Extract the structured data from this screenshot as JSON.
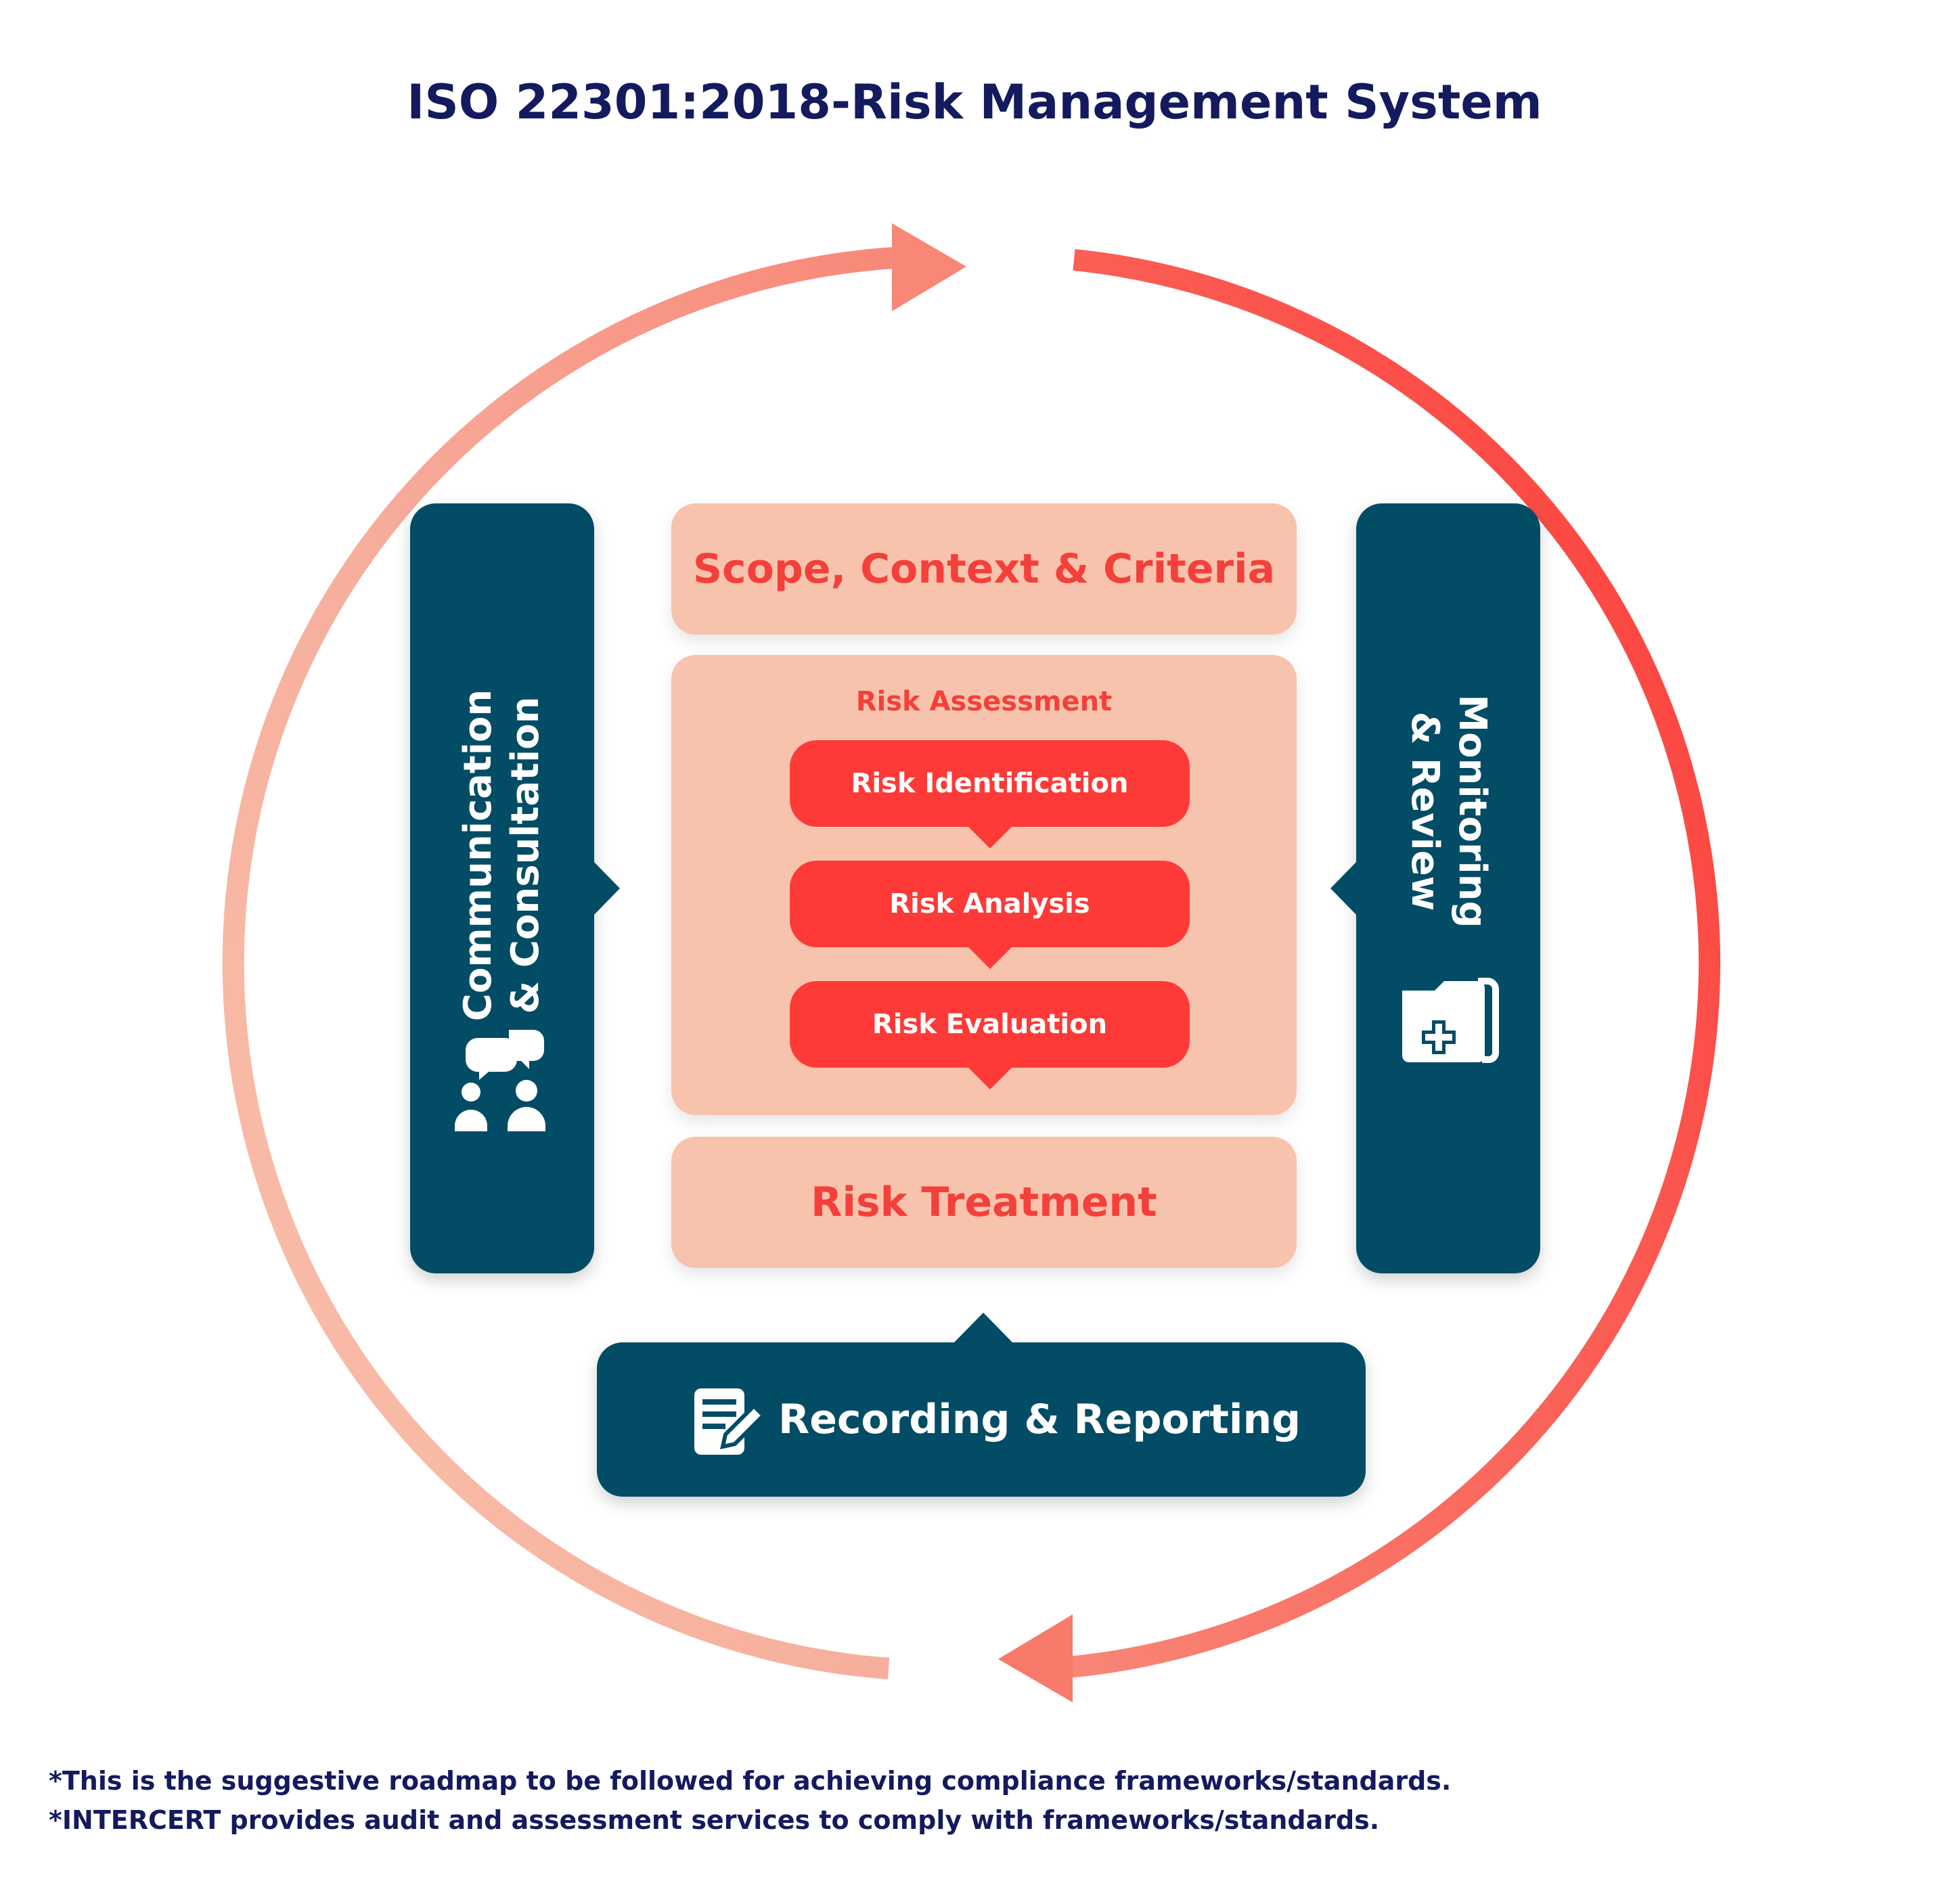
{
  "title": "ISO 22301:2018-Risk Management System",
  "colors": {
    "navy": "#034c66",
    "peach": "#f8c3ac",
    "red": "#fd3a37",
    "title_blue": "#141a5e",
    "cycle_light": "#f8c3ac",
    "cycle_dark": "#fd3a37"
  },
  "center": {
    "scope": "Scope, Context & Criteria",
    "assessment": {
      "heading": "Risk Assessment",
      "steps": [
        "Risk Identification",
        "Risk Analysis",
        "Risk Evaluation"
      ]
    },
    "treatment": "Risk Treatment"
  },
  "left_panel": {
    "line1": "Communication",
    "line2": "& Consultation",
    "icon": "people-chat-icon"
  },
  "right_panel": {
    "line1": "Monitoring",
    "line2": "& Review",
    "icon": "medical-folder-icon"
  },
  "bottom_panel": {
    "label": "Recording & Reporting",
    "icon": "document-edit-icon"
  },
  "footnotes": [
    "*This is the suggestive roadmap to be followed for achieving compliance frameworks/standards.",
    "*INTERCERT provides audit and assessment services to comply with frameworks/standards."
  ]
}
